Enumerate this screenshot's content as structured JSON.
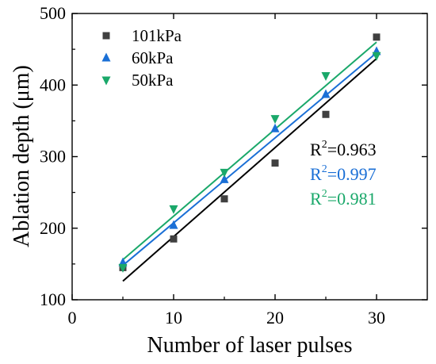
{
  "chart_data": {
    "type": "scatter",
    "xlabel": "Number of laser pulses",
    "ylabel": "Ablation depth (μm)",
    "xlim": [
      0,
      35
    ],
    "ylim": [
      100,
      500
    ],
    "xticks": [
      0,
      10,
      20,
      30
    ],
    "yticks": [
      100,
      200,
      300,
      400,
      500
    ],
    "grid": false,
    "legend_position": "top-left",
    "series": [
      {
        "name": "101kPa",
        "marker": "square",
        "color": "#404040",
        "fit_color": "#000000",
        "x": [
          5,
          10,
          15,
          20,
          25,
          30
        ],
        "y": [
          145,
          185,
          241,
          291,
          359,
          467
        ],
        "fit": {
          "x": [
            5,
            30
          ],
          "y": [
            126,
            437
          ]
        },
        "r2_base": "R",
        "r2_exp": "2",
        "r2_value": "=0.963",
        "r2_color": "#000000"
      },
      {
        "name": "60kPa",
        "marker": "triangle-up",
        "color": "#1a6fd6",
        "fit_color": "#1a6fd6",
        "x": [
          5,
          10,
          15,
          20,
          25,
          30
        ],
        "y": [
          152,
          204,
          268,
          339,
          387,
          447
        ],
        "fit": {
          "x": [
            5,
            30
          ],
          "y": [
            148,
            445
          ]
        },
        "r2_base": "R",
        "r2_exp": "2",
        "r2_value": "=0.997",
        "r2_color": "#1a6fd6"
      },
      {
        "name": "50kPa",
        "marker": "triangle-down",
        "color": "#1aa86a",
        "fit_color": "#1aa86a",
        "x": [
          5,
          10,
          15,
          20,
          25,
          30
        ],
        "y": [
          145,
          227,
          278,
          353,
          413,
          441
        ],
        "fit": {
          "x": [
            5,
            30
          ],
          "y": [
            156,
            460
          ]
        },
        "r2_base": "R",
        "r2_exp": "2",
        "r2_value": "=0.981",
        "r2_color": "#1aa86a"
      }
    ]
  }
}
